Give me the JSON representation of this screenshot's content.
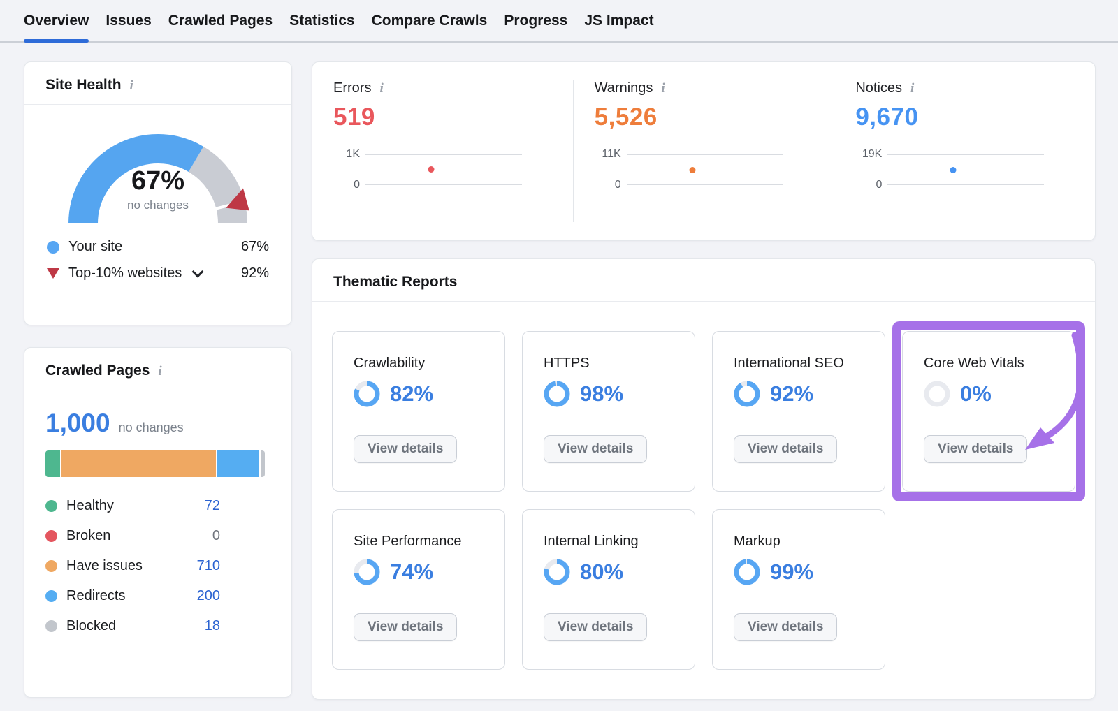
{
  "nav": {
    "tabs": [
      {
        "label": "Overview",
        "active": true
      },
      {
        "label": "Issues"
      },
      {
        "label": "Crawled Pages"
      },
      {
        "label": "Statistics"
      },
      {
        "label": "Compare Crawls"
      },
      {
        "label": "Progress"
      },
      {
        "label": "JS Impact"
      }
    ],
    "active_color": "#2E6BD8"
  },
  "site_health": {
    "title": "Site Health",
    "score_pct": 67,
    "score_label": "67%",
    "change_label": "no changes",
    "benchmark_pct": 92,
    "gauge_colors": {
      "fill": "#55A5F0",
      "rest": "#C9CCD3",
      "marker": "#BE3845"
    },
    "legend": [
      {
        "label": "Your site",
        "value": "67%",
        "marker_color": "#57A6F3"
      },
      {
        "label": "Top-10% websites",
        "value": "92%",
        "marker_color": "#BE3845"
      }
    ]
  },
  "issue_totals": {
    "items": [
      {
        "label": "Errors",
        "value": "519",
        "value_num": 519,
        "axis_top": "1K",
        "axis_max": 1000,
        "axis_bottom": "0",
        "color": "#E9575C"
      },
      {
        "label": "Warnings",
        "value": "5,526",
        "value_num": 5526,
        "axis_top": "11K",
        "axis_max": 11000,
        "axis_bottom": "0",
        "color": "#EE7D3B"
      },
      {
        "label": "Notices",
        "value": "9,670",
        "value_num": 9670,
        "axis_top": "19K",
        "axis_max": 19000,
        "axis_bottom": "0",
        "color": "#4693F2"
      }
    ]
  },
  "crawled_pages": {
    "title": "Crawled Pages",
    "total": "1,000",
    "total_num": 1000,
    "change_label": "no changes",
    "segments": [
      {
        "label": "Healthy",
        "value": "72",
        "value_num": 72,
        "color": "#4EB78F",
        "value_color": "#2B63D1"
      },
      {
        "label": "Broken",
        "value": "0",
        "value_num": 0,
        "color": "#E4565F",
        "value_color": "#71767E"
      },
      {
        "label": "Have issues",
        "value": "710",
        "value_num": 710,
        "color": "#EFA862",
        "value_color": "#2B63D1"
      },
      {
        "label": "Redirects",
        "value": "200",
        "value_num": 200,
        "color": "#55ADF2",
        "value_color": "#2B63D1"
      },
      {
        "label": "Blocked",
        "value": "18",
        "value_num": 18,
        "color": "#C2C6CC",
        "value_color": "#2B63D1"
      }
    ]
  },
  "thematic_reports": {
    "title": "Thematic Reports",
    "button_label": "View details",
    "donut_colors": {
      "fill": "#57A6F3",
      "rest": "#E8EAEF"
    },
    "pct_color": "#3A7EE0",
    "cards": [
      {
        "title": "Crawlability",
        "pct": 82,
        "pct_label": "82%"
      },
      {
        "title": "HTTPS",
        "pct": 98,
        "pct_label": "98%"
      },
      {
        "title": "International SEO",
        "pct": 92,
        "pct_label": "92%"
      },
      {
        "title": "Core Web Vitals",
        "pct": 0,
        "pct_label": "0%",
        "highlighted": true
      },
      {
        "title": "Site Performance",
        "pct": 74,
        "pct_label": "74%"
      },
      {
        "title": "Internal Linking",
        "pct": 80,
        "pct_label": "80%"
      },
      {
        "title": "Markup",
        "pct": 99,
        "pct_label": "99%"
      }
    ]
  },
  "annotation": {
    "color": "#A671E8"
  }
}
